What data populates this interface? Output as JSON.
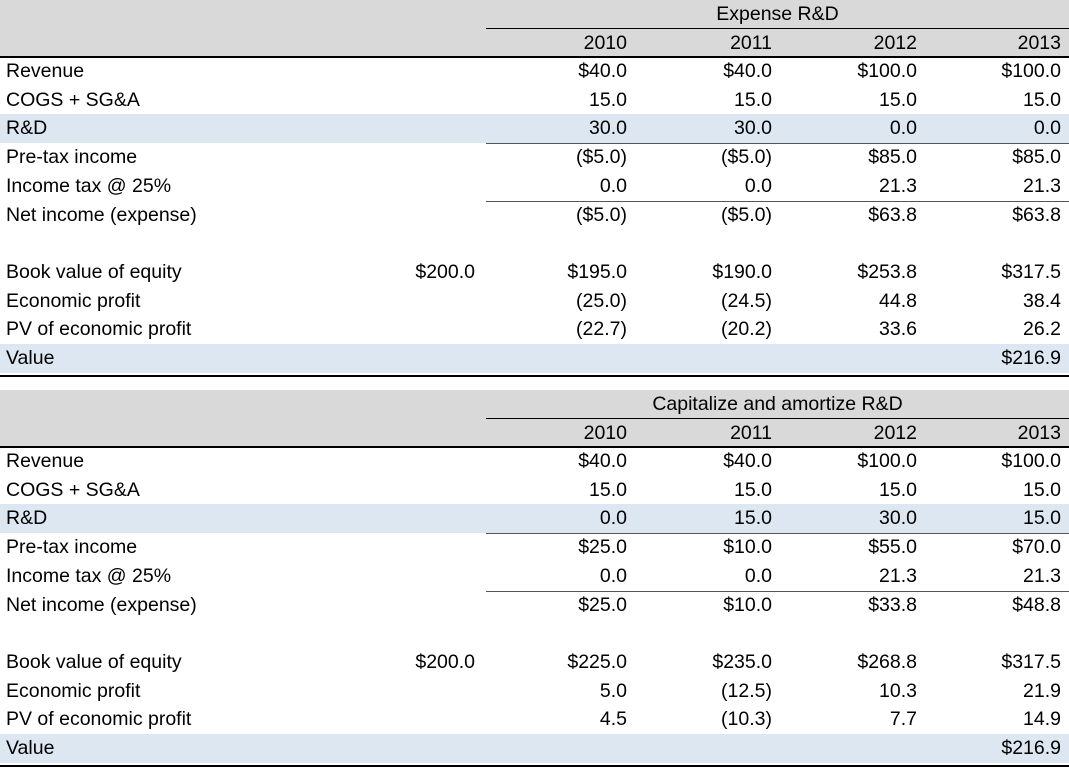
{
  "tables": [
    {
      "title": "Expense R&D",
      "years": [
        "2010",
        "2011",
        "2012",
        "2013"
      ],
      "rows": [
        {
          "label": "Revenue",
          "base": "",
          "values": [
            "$40.0",
            "$40.0",
            "$100.0",
            "$100.0"
          ]
        },
        {
          "label": "COGS + SG&A",
          "base": "",
          "values": [
            "15.0",
            "15.0",
            "15.0",
            "15.0"
          ]
        },
        {
          "label": "R&D",
          "base": "",
          "values": [
            "30.0",
            "30.0",
            "0.0",
            "0.0"
          ]
        },
        {
          "label": "Pre-tax income",
          "base": "",
          "values": [
            "($5.0)",
            "($5.0)",
            "$85.0",
            "$85.0"
          ]
        },
        {
          "label": "Income tax @ 25%",
          "base": "",
          "values": [
            "0.0",
            "0.0",
            "21.3",
            "21.3"
          ]
        },
        {
          "label": "Net income (expense)",
          "base": "",
          "values": [
            "($5.0)",
            "($5.0)",
            "$63.8",
            "$63.8"
          ]
        },
        {
          "label": "",
          "base": "",
          "values": [
            "",
            "",
            "",
            ""
          ]
        },
        {
          "label": "Book value of equity",
          "base": "$200.0",
          "values": [
            "$195.0",
            "$190.0",
            "$253.8",
            "$317.5"
          ]
        },
        {
          "label": "Economic profit",
          "base": "",
          "values": [
            "(25.0)",
            "(24.5)",
            "44.8",
            "38.4"
          ]
        },
        {
          "label": "PV of economic profit",
          "base": "",
          "values": [
            "(22.7)",
            "(20.2)",
            "33.6",
            "26.2"
          ]
        },
        {
          "label": "Value",
          "base": "",
          "values": [
            "",
            "",
            "",
            "$216.9"
          ]
        }
      ]
    },
    {
      "title": "Capitalize and amortize R&D",
      "years": [
        "2010",
        "2011",
        "2012",
        "2013"
      ],
      "rows": [
        {
          "label": "Revenue",
          "base": "",
          "values": [
            "$40.0",
            "$40.0",
            "$100.0",
            "$100.0"
          ]
        },
        {
          "label": "COGS + SG&A",
          "base": "",
          "values": [
            "15.0",
            "15.0",
            "15.0",
            "15.0"
          ]
        },
        {
          "label": "R&D",
          "base": "",
          "values": [
            "0.0",
            "15.0",
            "30.0",
            "15.0"
          ]
        },
        {
          "label": "Pre-tax income",
          "base": "",
          "values": [
            "$25.0",
            "$10.0",
            "$55.0",
            "$70.0"
          ]
        },
        {
          "label": "Income tax @ 25%",
          "base": "",
          "values": [
            "0.0",
            "0.0",
            "21.3",
            "21.3"
          ]
        },
        {
          "label": "Net income (expense)",
          "base": "",
          "values": [
            "$25.0",
            "$10.0",
            "$33.8",
            "$48.8"
          ]
        },
        {
          "label": "",
          "base": "",
          "values": [
            "",
            "",
            "",
            ""
          ]
        },
        {
          "label": "Book value of equity",
          "base": "$200.0",
          "values": [
            "$225.0",
            "$235.0",
            "$268.8",
            "$317.5"
          ]
        },
        {
          "label": "Economic profit",
          "base": "",
          "values": [
            "5.0",
            "(12.5)",
            "10.3",
            "21.9"
          ]
        },
        {
          "label": "PV of economic profit",
          "base": "",
          "values": [
            "4.5",
            "(10.3)",
            "7.7",
            "14.9"
          ]
        },
        {
          "label": "Value",
          "base": "",
          "values": [
            "",
            "",
            "",
            "$216.9"
          ]
        }
      ]
    }
  ]
}
